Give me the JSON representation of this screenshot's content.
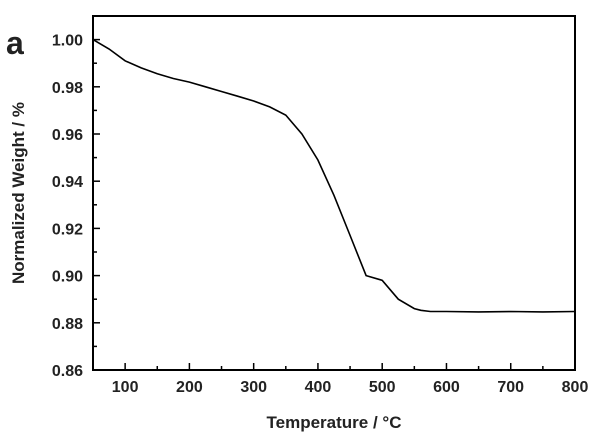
{
  "panel_label": "a",
  "chart_data": {
    "type": "line",
    "title": "",
    "xlabel": "Temperature / °C",
    "ylabel": "Normalized Weight / %",
    "xlim": [
      50,
      800
    ],
    "ylim": [
      0.86,
      1.01
    ],
    "xticks": [
      100,
      200,
      300,
      400,
      500,
      600,
      700,
      800
    ],
    "yticks": [
      0.86,
      0.88,
      0.9,
      0.92,
      0.94,
      0.96,
      0.98,
      1.0
    ],
    "xtick_labels": [
      "100",
      "200",
      "300",
      "400",
      "500",
      "600",
      "700",
      "800"
    ],
    "ytick_labels": [
      "0.86",
      "0.88",
      "0.90",
      "0.92",
      "0.94",
      "0.96",
      "0.98",
      "1.00"
    ],
    "grid": false,
    "series": [
      {
        "color": "#000000",
        "x": [
          50,
          75,
          100,
          125,
          150,
          175,
          200,
          225,
          250,
          275,
          300,
          325,
          350,
          375,
          400,
          425,
          450,
          475,
          500,
          525,
          550,
          560,
          575,
          600,
          650,
          700,
          750,
          800
        ],
        "y": [
          1.0,
          0.996,
          0.991,
          0.988,
          0.9855,
          0.9835,
          0.982,
          0.98,
          0.978,
          0.976,
          0.974,
          0.9715,
          0.968,
          0.96,
          0.949,
          0.934,
          0.917,
          0.9,
          0.898,
          0.89,
          0.886,
          0.8853,
          0.8848,
          0.8848,
          0.8846,
          0.8848,
          0.8846,
          0.8848
        ]
      }
    ]
  }
}
